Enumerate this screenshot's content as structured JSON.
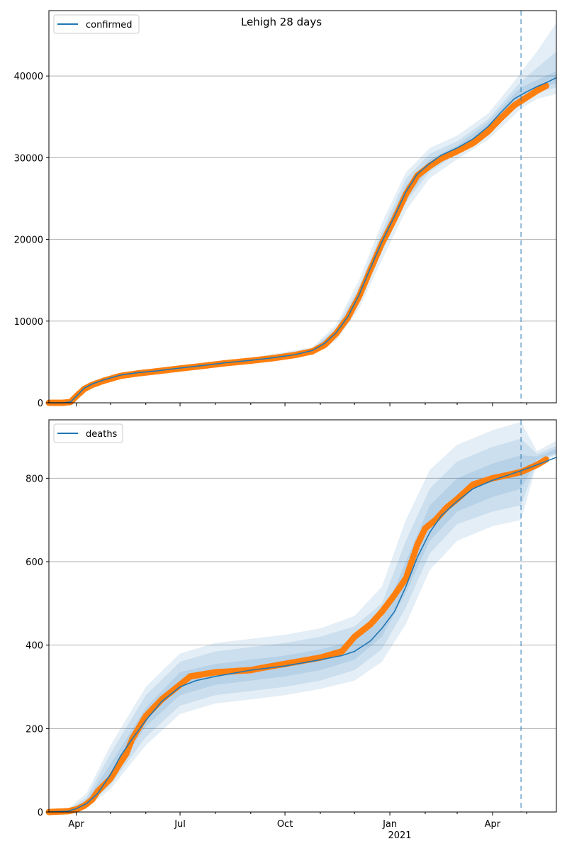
{
  "chart_data": [
    {
      "type": "line",
      "title": "Lehigh 28 days",
      "legend": [
        "confirmed"
      ],
      "legend_position": "top-left",
      "grid": "y",
      "ylim": [
        0,
        48000
      ],
      "xlim": [
        "2020-03-08",
        "2021-05-27"
      ],
      "yticks": [
        0,
        10000,
        20000,
        30000,
        40000
      ],
      "forecast_start": "2021-04-26",
      "series": [
        {
          "name": "confirmed",
          "kind": "model",
          "x": [
            "2020-03-08",
            "2020-03-20",
            "2020-03-27",
            "2020-04-01",
            "2020-04-08",
            "2020-04-15",
            "2020-04-25",
            "2020-05-10",
            "2020-05-25",
            "2020-06-10",
            "2020-07-01",
            "2020-07-20",
            "2020-08-10",
            "2020-09-01",
            "2020-09-20",
            "2020-10-10",
            "2020-10-25",
            "2020-11-05",
            "2020-11-15",
            "2020-11-25",
            "2020-12-05",
            "2020-12-15",
            "2020-12-25",
            "2021-01-05",
            "2021-01-15",
            "2021-01-25",
            "2021-02-05",
            "2021-02-15",
            "2021-03-01",
            "2021-03-15",
            "2021-03-28",
            "2021-04-08",
            "2021-04-20",
            "2021-04-30",
            "2021-05-10",
            "2021-05-20",
            "2021-05-27"
          ],
          "y": [
            0,
            0,
            100,
            800,
            1800,
            2300,
            2800,
            3400,
            3700,
            3900,
            4250,
            4550,
            4900,
            5200,
            5500,
            5900,
            6400,
            7300,
            8600,
            10500,
            13200,
            16500,
            19700,
            22800,
            25800,
            28000,
            29300,
            30300,
            31200,
            32300,
            33800,
            35500,
            37200,
            38000,
            38700,
            39300,
            39800
          ]
        },
        {
          "name": "confirmed observed",
          "kind": "points",
          "x": [
            "2020-03-08",
            "2020-03-20",
            "2020-03-27",
            "2020-04-01",
            "2020-04-08",
            "2020-04-15",
            "2020-04-25",
            "2020-05-10",
            "2020-05-25",
            "2020-06-10",
            "2020-07-01",
            "2020-07-20",
            "2020-08-10",
            "2020-09-01",
            "2020-09-20",
            "2020-10-10",
            "2020-10-25",
            "2020-11-05",
            "2020-11-15",
            "2020-11-25",
            "2020-12-05",
            "2020-12-15",
            "2020-12-25",
            "2021-01-05",
            "2021-01-15",
            "2021-01-25",
            "2021-02-05",
            "2021-02-15",
            "2021-03-01",
            "2021-03-15",
            "2021-03-28",
            "2021-04-08",
            "2021-04-20",
            "2021-04-30",
            "2021-05-10",
            "2021-05-18"
          ],
          "y": [
            0,
            0,
            100,
            800,
            1700,
            2200,
            2700,
            3300,
            3600,
            3850,
            4200,
            4500,
            4850,
            5150,
            5450,
            5850,
            6300,
            7100,
            8500,
            10400,
            13000,
            16300,
            19500,
            22500,
            25500,
            27800,
            29000,
            29900,
            30800,
            31800,
            33200,
            34800,
            36400,
            37300,
            38200,
            38800
          ]
        }
      ],
      "bands": [
        {
          "x": [
            "2020-03-08",
            "2020-03-27",
            "2020-04-08",
            "2020-05-10",
            "2020-07-01",
            "2020-09-01",
            "2020-10-25",
            "2020-11-15",
            "2020-12-05",
            "2020-12-25",
            "2021-01-15",
            "2021-02-05",
            "2021-03-01",
            "2021-03-28",
            "2021-04-20",
            "2021-04-26",
            "2021-05-10",
            "2021-05-27"
          ],
          "lower": [
            0,
            0,
            1500,
            3100,
            4000,
            4900,
            6000,
            7600,
            11500,
            17500,
            23500,
            27500,
            29800,
            32200,
            35200,
            36000,
            37200,
            37800
          ],
          "upper": [
            0,
            200,
            2100,
            3700,
            4500,
            5500,
            6800,
            9600,
            15000,
            22000,
            28200,
            31200,
            32700,
            35400,
            39300,
            40500,
            43000,
            46500
          ]
        },
        {
          "x": [
            "2020-03-08",
            "2020-03-27",
            "2020-04-08",
            "2020-05-10",
            "2020-07-01",
            "2020-09-01",
            "2020-10-25",
            "2020-11-15",
            "2020-12-05",
            "2020-12-25",
            "2021-01-15",
            "2021-02-05",
            "2021-03-01",
            "2021-03-28",
            "2021-04-20",
            "2021-04-26",
            "2021-05-10",
            "2021-05-27"
          ],
          "lower": [
            0,
            0,
            1600,
            3200,
            4100,
            5000,
            6150,
            8000,
            12200,
            18500,
            24500,
            28300,
            30500,
            32900,
            36100,
            36900,
            38000,
            38600
          ],
          "upper": [
            0,
            150,
            2000,
            3600,
            4400,
            5400,
            6650,
            9200,
            14200,
            21000,
            27400,
            30500,
            32000,
            34700,
            38400,
            39300,
            41000,
            43000
          ]
        },
        {
          "x": [
            "2020-03-08",
            "2020-03-27",
            "2020-04-08",
            "2020-05-10",
            "2020-07-01",
            "2020-09-01",
            "2020-10-25",
            "2020-11-15",
            "2020-12-05",
            "2020-12-25",
            "2021-01-15",
            "2021-02-05",
            "2021-03-01",
            "2021-03-28",
            "2021-04-20",
            "2021-04-26",
            "2021-05-10",
            "2021-05-27"
          ],
          "lower": [
            0,
            50,
            1700,
            3300,
            4200,
            5100,
            6250,
            8300,
            12700,
            19000,
            25000,
            28800,
            30900,
            33300,
            36600,
            37400,
            38400,
            39100
          ],
          "upper": [
            0,
            120,
            1900,
            3500,
            4300,
            5300,
            6550,
            8900,
            13700,
            20400,
            26600,
            29800,
            31500,
            34300,
            37800,
            38600,
            39500,
            40600
          ]
        }
      ]
    },
    {
      "type": "line",
      "title": "",
      "legend": [
        "deaths"
      ],
      "legend_position": "top-left",
      "grid": "y",
      "ylim": [
        0,
        940
      ],
      "xlim": [
        "2020-03-08",
        "2021-05-27"
      ],
      "yticks": [
        0,
        200,
        400,
        600,
        800
      ],
      "xticks": [
        "Apr",
        "Jul",
        "Oct",
        "Jan",
        "Apr"
      ],
      "xtick_dates": [
        "2020-04-01",
        "2020-07-01",
        "2020-10-01",
        "2021-01-01",
        "2021-04-01"
      ],
      "xtick_secondary": "2021",
      "forecast_start": "2021-04-26",
      "series": [
        {
          "name": "deaths",
          "kind": "model",
          "x": [
            "2020-03-08",
            "2020-03-25",
            "2020-04-01",
            "2020-04-10",
            "2020-04-20",
            "2020-05-01",
            "2020-05-10",
            "2020-05-20",
            "2020-06-01",
            "2020-06-15",
            "2020-07-01",
            "2020-07-15",
            "2020-08-01",
            "2020-09-01",
            "2020-10-01",
            "2020-11-01",
            "2020-11-20",
            "2020-12-01",
            "2020-12-15",
            "2020-12-25",
            "2021-01-05",
            "2021-01-15",
            "2021-01-25",
            "2021-02-05",
            "2021-02-15",
            "2021-03-01",
            "2021-03-15",
            "2021-04-01",
            "2021-04-15",
            "2021-04-26",
            "2021-05-10",
            "2021-05-27"
          ],
          "y": [
            0,
            2,
            8,
            20,
            45,
            90,
            135,
            175,
            220,
            265,
            300,
            315,
            325,
            340,
            350,
            365,
            375,
            385,
            410,
            440,
            480,
            540,
            610,
            670,
            710,
            745,
            775,
            795,
            808,
            818,
            832,
            850
          ]
        },
        {
          "name": "deaths observed",
          "kind": "points",
          "x": [
            "2020-03-08",
            "2020-03-25",
            "2020-04-01",
            "2020-04-08",
            "2020-04-15",
            "2020-04-20",
            "2020-05-01",
            "2020-05-10",
            "2020-05-15",
            "2020-05-20",
            "2020-06-01",
            "2020-06-15",
            "2020-07-01",
            "2020-07-10",
            "2020-08-01",
            "2020-09-01",
            "2020-09-10",
            "2020-10-01",
            "2020-11-01",
            "2020-11-20",
            "2020-12-01",
            "2020-12-15",
            "2020-12-25",
            "2021-01-05",
            "2021-01-15",
            "2021-01-20",
            "2021-01-25",
            "2021-02-01",
            "2021-02-10",
            "2021-02-20",
            "2021-03-01",
            "2021-03-15",
            "2021-04-01",
            "2021-04-15",
            "2021-04-26",
            "2021-05-10",
            "2021-05-18"
          ],
          "y": [
            0,
            2,
            6,
            15,
            30,
            50,
            80,
            120,
            140,
            175,
            230,
            270,
            305,
            325,
            335,
            340,
            345,
            355,
            370,
            385,
            420,
            450,
            480,
            520,
            560,
            600,
            640,
            680,
            700,
            730,
            750,
            785,
            800,
            808,
            815,
            832,
            845
          ]
        }
      ],
      "bands": [
        {
          "x": [
            "2020-03-08",
            "2020-03-25",
            "2020-04-10",
            "2020-05-01",
            "2020-06-01",
            "2020-07-01",
            "2020-08-01",
            "2020-09-01",
            "2020-10-01",
            "2020-11-01",
            "2020-12-01",
            "2020-12-25",
            "2021-01-15",
            "2021-02-05",
            "2021-03-01",
            "2021-04-01",
            "2021-04-26",
            "2021-05-10",
            "2021-05-27"
          ],
          "lower": [
            0,
            0,
            10,
            55,
            160,
            235,
            260,
            270,
            280,
            295,
            315,
            360,
            450,
            580,
            650,
            685,
            700,
            835,
            855
          ],
          "upper": [
            0,
            8,
            45,
            160,
            300,
            380,
            405,
            415,
            425,
            440,
            470,
            540,
            700,
            820,
            880,
            915,
            935,
            865,
            890
          ]
        },
        {
          "x": [
            "2020-03-08",
            "2020-03-25",
            "2020-04-10",
            "2020-05-01",
            "2020-06-01",
            "2020-07-01",
            "2020-08-01",
            "2020-09-01",
            "2020-10-01",
            "2020-11-01",
            "2020-12-01",
            "2020-12-25",
            "2021-01-15",
            "2021-02-05",
            "2021-03-01",
            "2021-04-01",
            "2021-04-26",
            "2021-05-10",
            "2021-05-27"
          ],
          "lower": [
            0,
            0,
            14,
            65,
            180,
            255,
            280,
            290,
            300,
            315,
            340,
            390,
            490,
            620,
            690,
            720,
            735,
            840,
            858
          ],
          "upper": [
            0,
            6,
            35,
            140,
            280,
            360,
            385,
            395,
            405,
            420,
            445,
            500,
            650,
            775,
            840,
            875,
            895,
            858,
            878
          ]
        },
        {
          "x": [
            "2020-03-08",
            "2020-03-25",
            "2020-04-10",
            "2020-05-01",
            "2020-06-01",
            "2020-07-01",
            "2020-08-01",
            "2020-09-01",
            "2020-10-01",
            "2020-11-01",
            "2020-12-01",
            "2020-12-25",
            "2021-01-15",
            "2021-02-05",
            "2021-03-01",
            "2021-04-01",
            "2021-04-26",
            "2021-05-10",
            "2021-05-27"
          ],
          "lower": [
            0,
            1,
            18,
            80,
            205,
            280,
            305,
            315,
            325,
            340,
            365,
            420,
            525,
            650,
            720,
            755,
            775,
            845,
            860
          ],
          "upper": [
            0,
            4,
            28,
            115,
            250,
            335,
            355,
            365,
            375,
            390,
            410,
            465,
            600,
            735,
            800,
            835,
            855,
            852,
            870
          ]
        }
      ]
    }
  ],
  "colors": {
    "model_line": "#1f77b4",
    "band": "#1f77b4",
    "observed": "#ff7f0e",
    "grid": "#b0b0b0",
    "forecast_line": "#1f77b4"
  }
}
